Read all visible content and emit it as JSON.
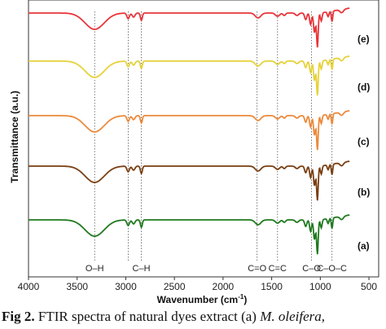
{
  "chart_data": {
    "type": "line",
    "xlabel": "Wavenumber (cm",
    "xlabel_sup": "-1",
    "xlabel_close": ")",
    "ylabel": "Transmittance (a.u.)",
    "xlim": [
      4000,
      400
    ],
    "x_ticks": [
      4000,
      3500,
      3000,
      2500,
      2000,
      1500,
      1000,
      500
    ],
    "y_ticks": "none",
    "grid": false,
    "legend": "labels at right end of each trace",
    "series": [
      {
        "name": "(e)",
        "color": "#e8353b"
      },
      {
        "name": "(d)",
        "color": "#e6d23a"
      },
      {
        "name": "(c)",
        "color": "#ec8a3c"
      },
      {
        "name": "(b)",
        "color": "#7a3f12"
      },
      {
        "name": "(a)",
        "color": "#1f7a1f"
      }
    ],
    "annotations": [
      {
        "wavenumber": 3320,
        "label": "O–H"
      },
      {
        "wavenumber": 2975,
        "label": ""
      },
      {
        "wavenumber": 2840,
        "label": "C–H"
      },
      {
        "wavenumber": 1650,
        "label": "C=O"
      },
      {
        "wavenumber": 1440,
        "label": "C=C"
      },
      {
        "wavenumber": 1090,
        "label": "C–O"
      },
      {
        "wavenumber": 880,
        "label": "C–O–C"
      }
    ]
  },
  "caption": {
    "lead": "Fig 2.",
    "text": " FTIR spectra of natural dyes extract (a) ",
    "species": "M. oleifera,"
  }
}
